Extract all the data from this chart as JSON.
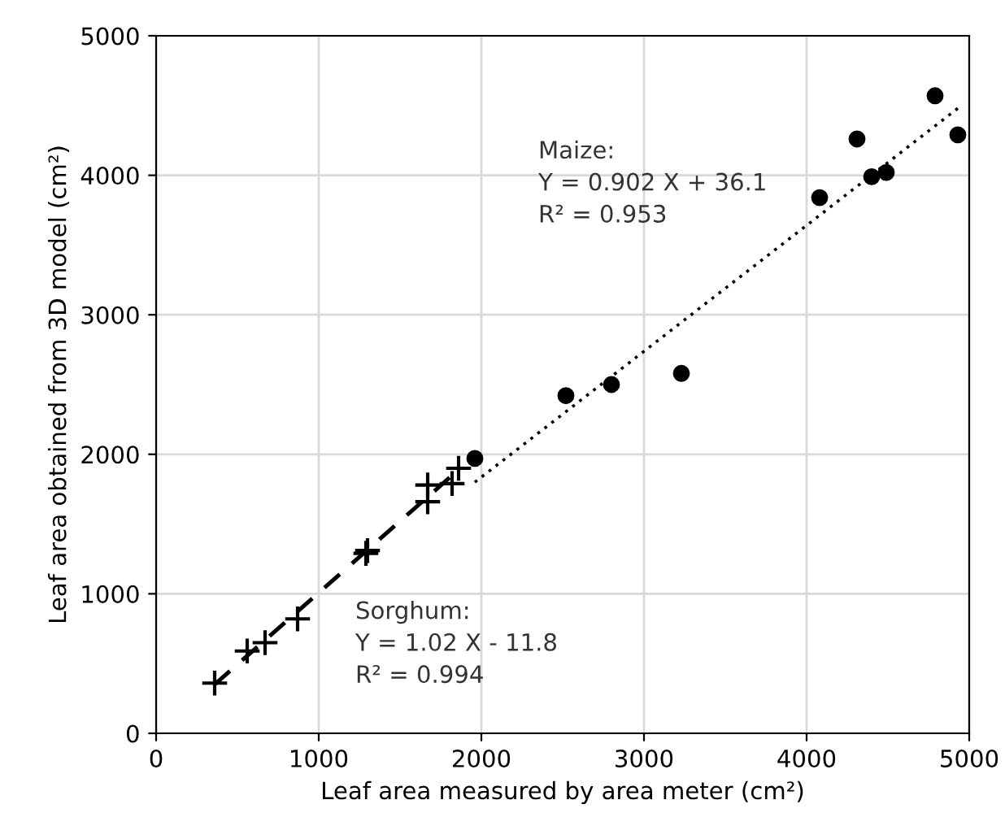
{
  "chart_data": {
    "type": "scatter",
    "xlabel": "Leaf area measured by area meter (cm²)",
    "ylabel": "Leaf area obtained from 3D model (cm²)",
    "xlim": [
      0,
      5000
    ],
    "ylim": [
      0,
      5000
    ],
    "xticks": [
      0,
      1000,
      2000,
      3000,
      4000,
      5000
    ],
    "yticks": [
      0,
      1000,
      2000,
      3000,
      4000,
      5000
    ],
    "grid": true,
    "series": [
      {
        "marker": "circle",
        "color": "#000000",
        "x": [
          1960,
          2520,
          2800,
          3230,
          4080,
          4310,
          4400,
          4490,
          4790,
          4930
        ],
        "values": [
          1970,
          2420,
          2500,
          2580,
          3840,
          4260,
          3990,
          4020,
          4570,
          4290
        ]
      },
      {
        "marker": "cross",
        "color": "#000000",
        "x": [
          360,
          560,
          670,
          870,
          1290,
          1300,
          1670,
          1670,
          1820,
          1860
        ],
        "values": [
          360,
          590,
          650,
          820,
          1290,
          1310,
          1780,
          1660,
          1790,
          1900
        ]
      },
      {
        "type": "line",
        "line_style": "dotted",
        "marker": "none",
        "color": "#000000",
        "x": [
          1960,
          4930
        ],
        "values": [
          1800,
          4480
        ]
      },
      {
        "type": "line",
        "line_style": "dashed",
        "marker": "none",
        "color": "#000000",
        "x": [
          360,
          1870
        ],
        "values": [
          350,
          1900
        ]
      }
    ],
    "annotations": [
      "Maize:\nY = 0.902 X + 36.1\nR² = 0.953",
      "Sorghum:\nY = 1.02 X - 11.8\nR² = 0.994"
    ]
  }
}
